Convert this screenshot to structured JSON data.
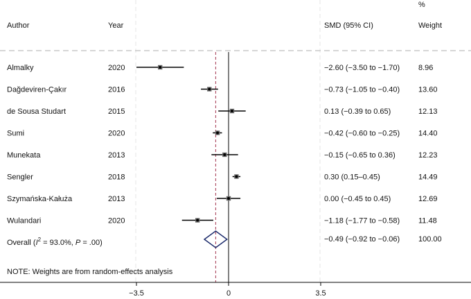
{
  "chart_data": {
    "type": "forest",
    "headers": {
      "author": "Author",
      "year": "Year",
      "ci": "SMD (95% CI)",
      "weight_pct": "%",
      "weight": "Weight"
    },
    "studies": [
      {
        "author": "Almalky",
        "year": "2020",
        "smd": -2.6,
        "lo": -3.5,
        "hi": -1.7,
        "ci_text": "−2.60 (−3.50 to −1.70)",
        "weight": "8.96"
      },
      {
        "author": "Dağdeviren-Çakır",
        "year": "2016",
        "smd": -0.73,
        "lo": -1.05,
        "hi": -0.4,
        "ci_text": "−0.73 (−1.05 to −0.40)",
        "weight": "13.60"
      },
      {
        "author": "de Sousa Studart",
        "year": "2015",
        "smd": 0.13,
        "lo": -0.39,
        "hi": 0.65,
        "ci_text": "0.13 (−0.39 to 0.65)",
        "weight": "12.13"
      },
      {
        "author": "Sumi",
        "year": "2020",
        "smd": -0.42,
        "lo": -0.6,
        "hi": -0.25,
        "ci_text": "−0.42 (−0.60 to −0.25)",
        "weight": "14.40"
      },
      {
        "author": "Munekata",
        "year": "2013",
        "smd": -0.15,
        "lo": -0.65,
        "hi": 0.36,
        "ci_text": "−0.15 (−0.65 to 0.36)",
        "weight": "12.23"
      },
      {
        "author": "Sengler",
        "year": "2018",
        "smd": 0.3,
        "lo": 0.15,
        "hi": 0.45,
        "ci_text": "0.30 (0.15–0.45)",
        "weight": "14.49"
      },
      {
        "author": "Szymańska-Kałuża",
        "year": "2013",
        "smd": 0.0,
        "lo": -0.45,
        "hi": 0.45,
        "ci_text": "0.00 (−0.45 to 0.45)",
        "weight": "12.69"
      },
      {
        "author": "Wulandari",
        "year": "2020",
        "smd": -1.18,
        "lo": -1.77,
        "hi": -0.58,
        "ci_text": "−1.18 (−1.77 to −0.58)",
        "weight": "11.48"
      }
    ],
    "overall": {
      "label_prefix": "Overall (",
      "label_i": "I",
      "label_sup": "2",
      "label_rest": " = 93.0%, ",
      "label_p": "P",
      "label_end": " = .00)",
      "smd": -0.49,
      "lo": -0.92,
      "hi": -0.06,
      "ci_text": "−0.49 (−0.92 to −0.06)",
      "weight": "100.00"
    },
    "note": "NOTE: Weights are from random-effects analysis",
    "x_ticks": [
      {
        "value": -3.5,
        "label": "−3.5"
      },
      {
        "value": 0,
        "label": "0"
      },
      {
        "value": 3.5,
        "label": "3.5"
      }
    ],
    "xlim": [
      -3.7,
      3.7
    ],
    "null_line": 0,
    "colors": {
      "text": "#111111",
      "line": "#000000",
      "pooled_line": "#a0304a",
      "diamond": "#1b2a6b",
      "point": "#6a6a6a",
      "grid": "#cccccc"
    }
  }
}
